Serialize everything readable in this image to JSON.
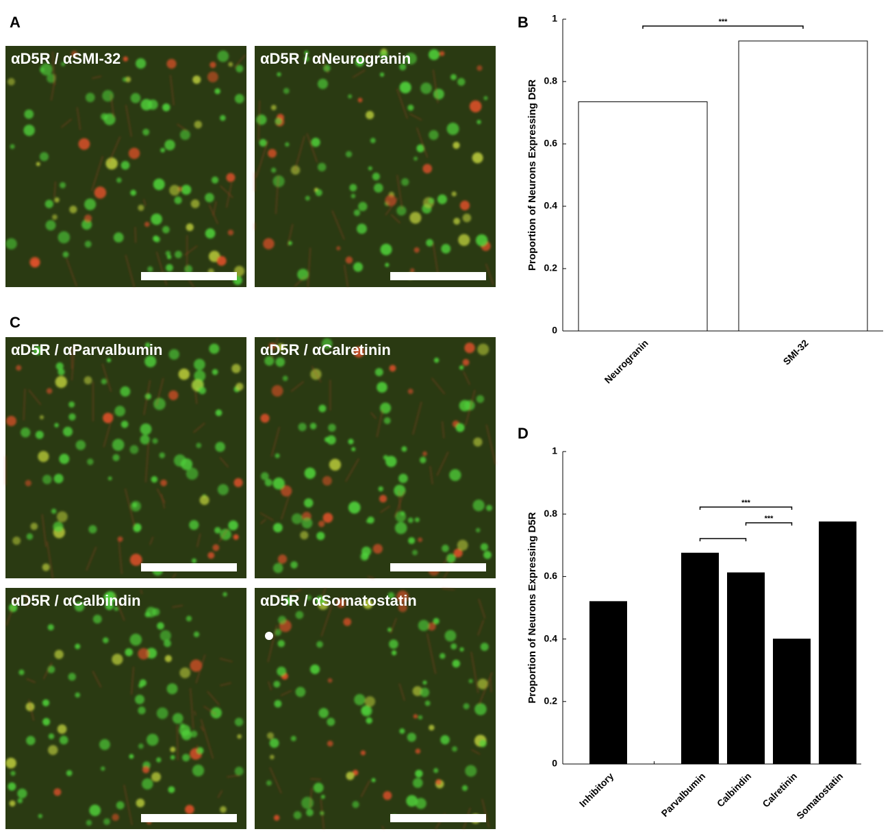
{
  "panel_letters": [
    "A",
    "B",
    "C",
    "D"
  ],
  "images": [
    {
      "label": "αD5R / αSMI-32"
    },
    {
      "label": "αD5R / αNeurogranin"
    },
    {
      "label": "αD5R / αParvalbumin"
    },
    {
      "label": "αD5R / αCalretinin"
    },
    {
      "label": "αD5R / αCalbindin"
    },
    {
      "label": "αD5R / αSomatostatin"
    }
  ],
  "chart_data": [
    {
      "type": "bar",
      "ylabel": "Proportion of Neurons Expressing D5R",
      "categories": [
        "Neurogranin",
        "SMI-32"
      ],
      "values": [
        0.735,
        0.93
      ],
      "color": "#ffffff",
      "edgecolor": "#000000",
      "ylim": [
        0,
        1
      ],
      "yticks": [
        0,
        0.2,
        0.4,
        0.6,
        0.8,
        1
      ],
      "annotations": [
        "***"
      ]
    },
    {
      "type": "bar",
      "ylabel": "Proportion of Neurons Expressing D5R",
      "categories": [
        "Inhibitory",
        null,
        "Parvalbumin",
        "Calbindin",
        "Calretinin",
        "Somatostatin"
      ],
      "values": [
        0.52,
        null,
        0.675,
        0.612,
        0.4,
        0.775
      ],
      "color": "#000000",
      "edgecolor": "#000000",
      "ylim": [
        0,
        1
      ],
      "yticks": [
        0,
        0.2,
        0.4,
        0.6,
        0.8,
        1
      ],
      "annotations": [
        "***",
        "***"
      ]
    }
  ]
}
